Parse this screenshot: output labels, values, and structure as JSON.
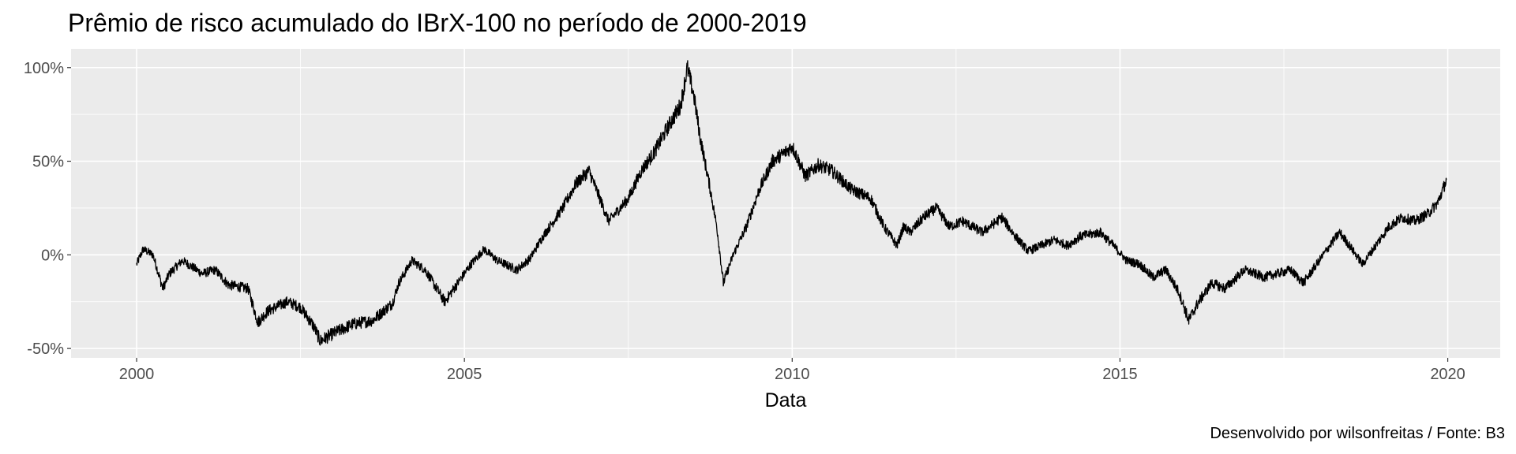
{
  "chart_data": {
    "type": "line",
    "title": "Prêmio de risco acumulado do IBrX-100 no período de 2000-2019",
    "xlabel": "Data",
    "ylabel": "",
    "caption": "Desenvolvido por wilsonfreitas / Fonte: B3",
    "x_unit": "year",
    "xlim": [
      1999.0,
      2020.8
    ],
    "ylim": [
      -55,
      110
    ],
    "xticks": [
      2000,
      2005,
      2010,
      2015,
      2020
    ],
    "xtick_labels": [
      "2000",
      "2005",
      "2010",
      "2015",
      "2020"
    ],
    "yticks": [
      -50,
      0,
      50,
      100
    ],
    "ytick_labels": [
      "-50%",
      "0%",
      "50%",
      "100%"
    ],
    "grid": true,
    "legend": "none",
    "colors": {
      "panel": "#ebebeb",
      "grid": "#ffffff",
      "line": "#000000"
    },
    "series": [
      {
        "x": [
          2000.0,
          2000.1,
          2000.25,
          2000.4,
          2000.5,
          2000.7,
          2001.0,
          2001.2,
          2001.4,
          2001.7,
          2001.85,
          2002.0,
          2002.3,
          2002.5,
          2002.7,
          2002.8,
          2003.0,
          2003.3,
          2003.6,
          2003.9,
          2004.0,
          2004.2,
          2004.4,
          2004.7,
          2004.9,
          2005.1,
          2005.3,
          2005.5,
          2005.8,
          2006.0,
          2006.2,
          2006.5,
          2006.7,
          2006.9,
          2007.2,
          2007.5,
          2007.7,
          2007.9,
          2008.1,
          2008.3,
          2008.4,
          2008.5,
          2008.6,
          2008.75,
          2008.85,
          2008.95,
          2009.1,
          2009.3,
          2009.5,
          2009.7,
          2009.9,
          2010.0,
          2010.2,
          2010.4,
          2010.6,
          2010.9,
          2011.2,
          2011.4,
          2011.6,
          2011.7,
          2011.8,
          2012.0,
          2012.2,
          2012.4,
          2012.6,
          2012.9,
          2013.2,
          2013.4,
          2013.6,
          2013.8,
          2014.0,
          2014.2,
          2014.4,
          2014.7,
          2014.9,
          2015.1,
          2015.3,
          2015.5,
          2015.7,
          2015.9,
          2016.05,
          2016.2,
          2016.4,
          2016.6,
          2016.9,
          2017.2,
          2017.4,
          2017.6,
          2017.8,
          2018.0,
          2018.2,
          2018.35,
          2018.5,
          2018.7,
          2018.9,
          2019.1,
          2019.3,
          2019.5,
          2019.7,
          2019.85,
          2019.98
        ],
        "y": [
          -5,
          3,
          0,
          -18,
          -10,
          -3,
          -10,
          -8,
          -16,
          -18,
          -36,
          -30,
          -25,
          -28,
          -38,
          -46,
          -42,
          -37,
          -35,
          -26,
          -15,
          -3,
          -8,
          -25,
          -15,
          -5,
          3,
          -3,
          -8,
          -2,
          10,
          25,
          38,
          45,
          18,
          30,
          45,
          55,
          68,
          80,
          100,
          85,
          62,
          35,
          15,
          -15,
          0,
          15,
          35,
          50,
          55,
          58,
          42,
          48,
          45,
          35,
          30,
          15,
          5,
          15,
          12,
          20,
          25,
          15,
          18,
          12,
          20,
          10,
          2,
          5,
          8,
          5,
          10,
          12,
          5,
          -3,
          -5,
          -12,
          -8,
          -20,
          -35,
          -25,
          -15,
          -18,
          -8,
          -12,
          -10,
          -8,
          -15,
          -5,
          5,
          12,
          5,
          -5,
          5,
          15,
          20,
          18,
          22,
          28,
          40
        ]
      }
    ]
  }
}
